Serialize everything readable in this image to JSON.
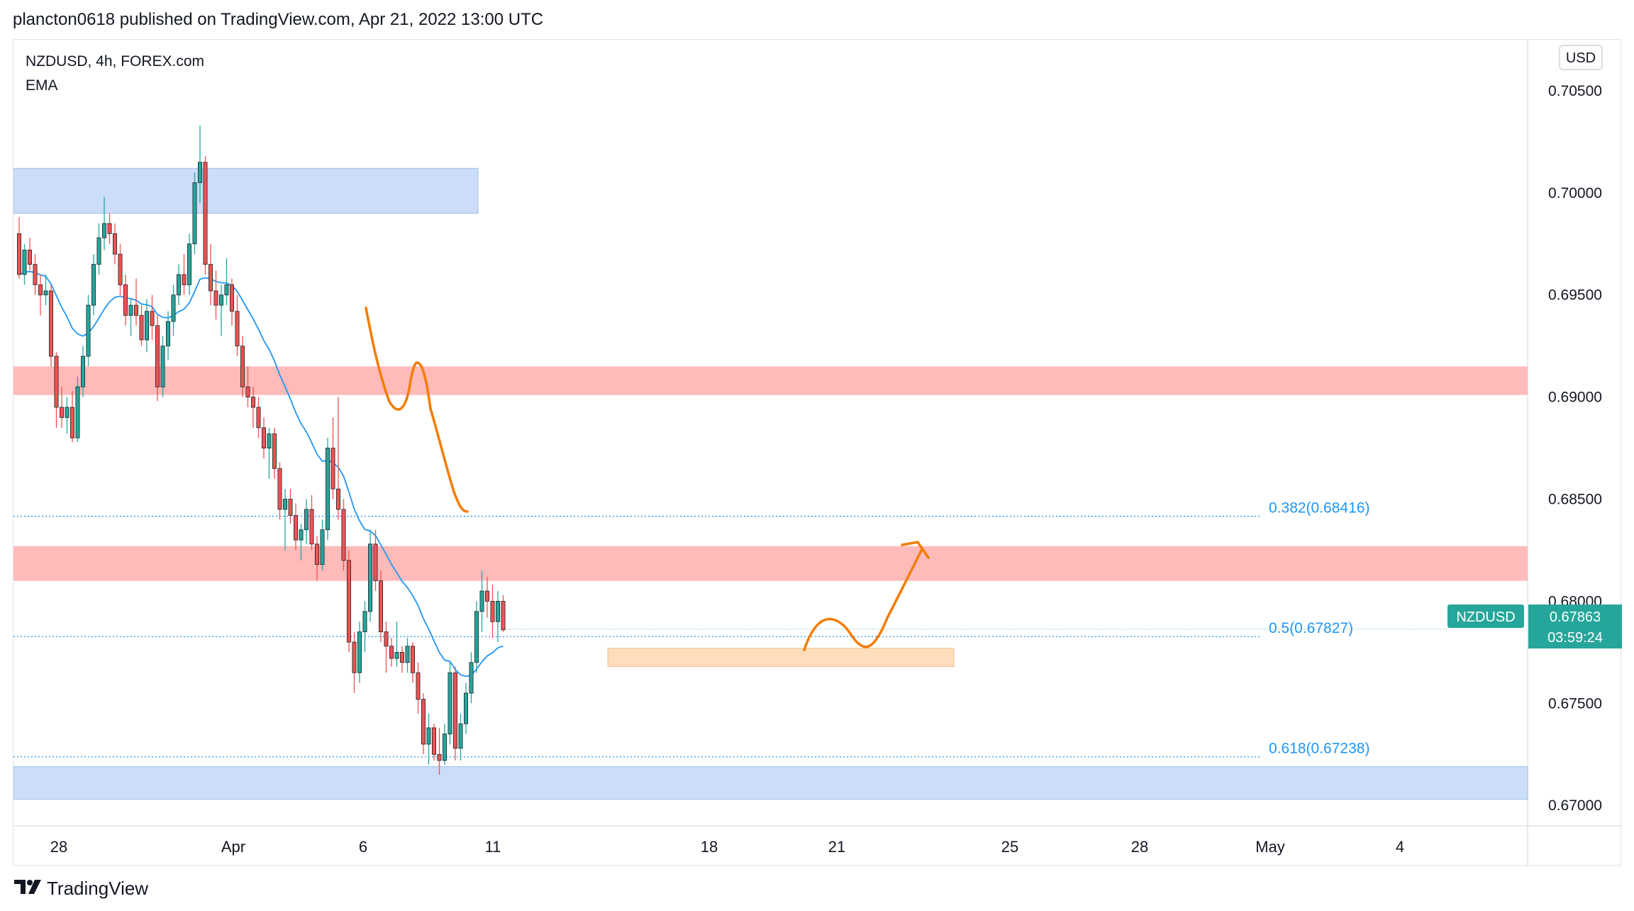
{
  "header": {
    "publish_line": "plancton0618 published on TradingView.com, Apr 21, 2022 13:00 UTC"
  },
  "legend": {
    "symbol_line": "NZDUSD, 4h, FOREX.com",
    "indicator": "EMA"
  },
  "currency": "USD",
  "footer": {
    "brand": "TradingView"
  },
  "price_badge": {
    "symbol": "NZDUSD",
    "price": "0.67863",
    "countdown": "03:59:24",
    "color": "#26a69a"
  },
  "colors": {
    "up": "#26a69a",
    "down": "#ef5350",
    "ema": "#2196f3",
    "fib": "#2196f3",
    "arrow": "#f57c00",
    "supply_zone": "#ffb3b3",
    "demand_zone": "#c5d9f7",
    "orange_zone": "#fdd9b5"
  },
  "chart_data": {
    "type": "candlestick",
    "symbol": "NZDUSD",
    "timeframe": "4h",
    "ylim": [
      0.669,
      0.7075
    ],
    "y_ticks": [
      "0.70500",
      "0.70000",
      "0.69500",
      "0.69000",
      "0.68500",
      "0.68000",
      "0.67500",
      "0.67000"
    ],
    "x_ticks": [
      "28",
      "Apr",
      "6",
      "11",
      "18",
      "21",
      "25",
      "28",
      "May",
      "4"
    ],
    "candles": [
      [
        0.698,
        0.6988,
        0.6958,
        0.696
      ],
      [
        0.696,
        0.6975,
        0.6955,
        0.6972
      ],
      [
        0.6972,
        0.6978,
        0.6962,
        0.6965
      ],
      [
        0.6965,
        0.697,
        0.695,
        0.6955
      ],
      [
        0.6955,
        0.696,
        0.694,
        0.695
      ],
      [
        0.695,
        0.696,
        0.6945,
        0.6952
      ],
      [
        0.6952,
        0.6955,
        0.6915,
        0.692
      ],
      [
        0.692,
        0.6922,
        0.6885,
        0.6895
      ],
      [
        0.6895,
        0.6905,
        0.6885,
        0.689
      ],
      [
        0.689,
        0.69,
        0.6882,
        0.6895
      ],
      [
        0.6895,
        0.6903,
        0.6878,
        0.688
      ],
      [
        0.688,
        0.691,
        0.6878,
        0.6905
      ],
      [
        0.6905,
        0.6925,
        0.69,
        0.692
      ],
      [
        0.692,
        0.695,
        0.6915,
        0.6945
      ],
      [
        0.6945,
        0.697,
        0.694,
        0.6965
      ],
      [
        0.6965,
        0.6985,
        0.696,
        0.6978
      ],
      [
        0.6978,
        0.6998,
        0.6972,
        0.6985
      ],
      [
        0.6985,
        0.699,
        0.6975,
        0.698
      ],
      [
        0.698,
        0.6985,
        0.6965,
        0.697
      ],
      [
        0.697,
        0.6975,
        0.695,
        0.6955
      ],
      [
        0.6955,
        0.696,
        0.6935,
        0.694
      ],
      [
        0.694,
        0.6948,
        0.693,
        0.6945
      ],
      [
        0.6945,
        0.6958,
        0.6935,
        0.694
      ],
      [
        0.694,
        0.6945,
        0.6925,
        0.6928
      ],
      [
        0.6928,
        0.6948,
        0.6922,
        0.6942
      ],
      [
        0.6942,
        0.695,
        0.6928,
        0.6935
      ],
      [
        0.6935,
        0.694,
        0.6898,
        0.6905
      ],
      [
        0.6905,
        0.693,
        0.69,
        0.6925
      ],
      [
        0.6925,
        0.6942,
        0.6918,
        0.6937
      ],
      [
        0.6937,
        0.6955,
        0.693,
        0.695
      ],
      [
        0.695,
        0.6965,
        0.6945,
        0.696
      ],
      [
        0.696,
        0.697,
        0.695,
        0.6955
      ],
      [
        0.6955,
        0.698,
        0.695,
        0.6975
      ],
      [
        0.6975,
        0.701,
        0.697,
        0.7005
      ],
      [
        0.7005,
        0.7033,
        0.6995,
        0.7015
      ],
      [
        0.7015,
        0.7018,
        0.696,
        0.6965
      ],
      [
        0.6965,
        0.6975,
        0.6945,
        0.6952
      ],
      [
        0.6952,
        0.6962,
        0.6938,
        0.6945
      ],
      [
        0.6945,
        0.6955,
        0.693,
        0.695
      ],
      [
        0.695,
        0.6968,
        0.6945,
        0.6955
      ],
      [
        0.6955,
        0.6958,
        0.6935,
        0.6942
      ],
      [
        0.6942,
        0.695,
        0.692,
        0.6925
      ],
      [
        0.6925,
        0.693,
        0.69,
        0.6905
      ],
      [
        0.6905,
        0.6915,
        0.6895,
        0.69
      ],
      [
        0.69,
        0.6905,
        0.6885,
        0.6895
      ],
      [
        0.6895,
        0.69,
        0.688,
        0.6885
      ],
      [
        0.6885,
        0.689,
        0.687,
        0.6875
      ],
      [
        0.6875,
        0.6885,
        0.686,
        0.6882
      ],
      [
        0.6882,
        0.6885,
        0.686,
        0.6865
      ],
      [
        0.6865,
        0.6868,
        0.684,
        0.6845
      ],
      [
        0.6845,
        0.6855,
        0.6825,
        0.685
      ],
      [
        0.685,
        0.6855,
        0.6838,
        0.6842
      ],
      [
        0.6842,
        0.6848,
        0.6825,
        0.683
      ],
      [
        0.683,
        0.6838,
        0.682,
        0.6835
      ],
      [
        0.6835,
        0.685,
        0.6828,
        0.6845
      ],
      [
        0.6845,
        0.6852,
        0.6825,
        0.6828
      ],
      [
        0.6828,
        0.6832,
        0.681,
        0.6818
      ],
      [
        0.6818,
        0.684,
        0.6815,
        0.6835
      ],
      [
        0.6835,
        0.688,
        0.683,
        0.6875
      ],
      [
        0.6875,
        0.689,
        0.685,
        0.6855
      ],
      [
        0.6855,
        0.69,
        0.684,
        0.6845
      ],
      [
        0.6845,
        0.685,
        0.6815,
        0.682
      ],
      [
        0.682,
        0.6825,
        0.6775,
        0.678
      ],
      [
        0.678,
        0.6785,
        0.6755,
        0.6765
      ],
      [
        0.6765,
        0.679,
        0.676,
        0.6785
      ],
      [
        0.6785,
        0.68,
        0.6775,
        0.6795
      ],
      [
        0.6795,
        0.6835,
        0.679,
        0.6828
      ],
      [
        0.6828,
        0.6835,
        0.6805,
        0.681
      ],
      [
        0.681,
        0.6815,
        0.678,
        0.6785
      ],
      [
        0.6785,
        0.679,
        0.6765,
        0.6778
      ],
      [
        0.6778,
        0.6782,
        0.6768,
        0.6772
      ],
      [
        0.6772,
        0.679,
        0.6768,
        0.6775
      ],
      [
        0.6775,
        0.6778,
        0.6765,
        0.677
      ],
      [
        0.677,
        0.6782,
        0.6765,
        0.6778
      ],
      [
        0.6778,
        0.678,
        0.676,
        0.6765
      ],
      [
        0.6765,
        0.677,
        0.6745,
        0.6752
      ],
      [
        0.6752,
        0.6755,
        0.6725,
        0.673
      ],
      [
        0.673,
        0.6745,
        0.672,
        0.6738
      ],
      [
        0.6738,
        0.674,
        0.6722,
        0.6725
      ],
      [
        0.6725,
        0.6738,
        0.6715,
        0.6722
      ],
      [
        0.6722,
        0.674,
        0.672,
        0.6735
      ],
      [
        0.6735,
        0.677,
        0.673,
        0.6765
      ],
      [
        0.6765,
        0.6768,
        0.6722,
        0.6728
      ],
      [
        0.6728,
        0.6745,
        0.6722,
        0.674
      ],
      [
        0.674,
        0.676,
        0.6735,
        0.6755
      ],
      [
        0.6755,
        0.6775,
        0.675,
        0.677
      ],
      [
        0.677,
        0.68,
        0.6765,
        0.6795
      ],
      [
        0.6795,
        0.6815,
        0.6785,
        0.6805
      ],
      [
        0.6805,
        0.6812,
        0.6792,
        0.68
      ],
      [
        0.68,
        0.6808,
        0.6782,
        0.679
      ],
      [
        0.679,
        0.6805,
        0.678,
        0.68
      ],
      [
        0.68,
        0.6803,
        0.6785,
        0.6786
      ]
    ],
    "indicators": [
      {
        "name": "EMA",
        "color": "#2196f3"
      }
    ],
    "fib_levels": [
      {
        "label": "0.382(0.68416)",
        "value": 0.68416
      },
      {
        "label": "0.5(0.67827)",
        "value": 0.67827
      },
      {
        "label": "0.618(0.67238)",
        "value": 0.67238
      }
    ],
    "zones": [
      {
        "kind": "demand",
        "top": 0.7012,
        "bottom": 0.699,
        "color": "#c5d9f7"
      },
      {
        "kind": "supply",
        "top": 0.6915,
        "bottom": 0.6901,
        "color": "#ffb3b3"
      },
      {
        "kind": "supply",
        "top": 0.6827,
        "bottom": 0.681,
        "color": "#ffb3b3"
      },
      {
        "kind": "entry",
        "top": 0.6777,
        "bottom": 0.6768,
        "color": "#fdd9b5"
      },
      {
        "kind": "demand",
        "top": 0.6719,
        "bottom": 0.6703,
        "color": "#c5d9f7"
      }
    ],
    "last_price": 0.67863,
    "grid": false
  }
}
